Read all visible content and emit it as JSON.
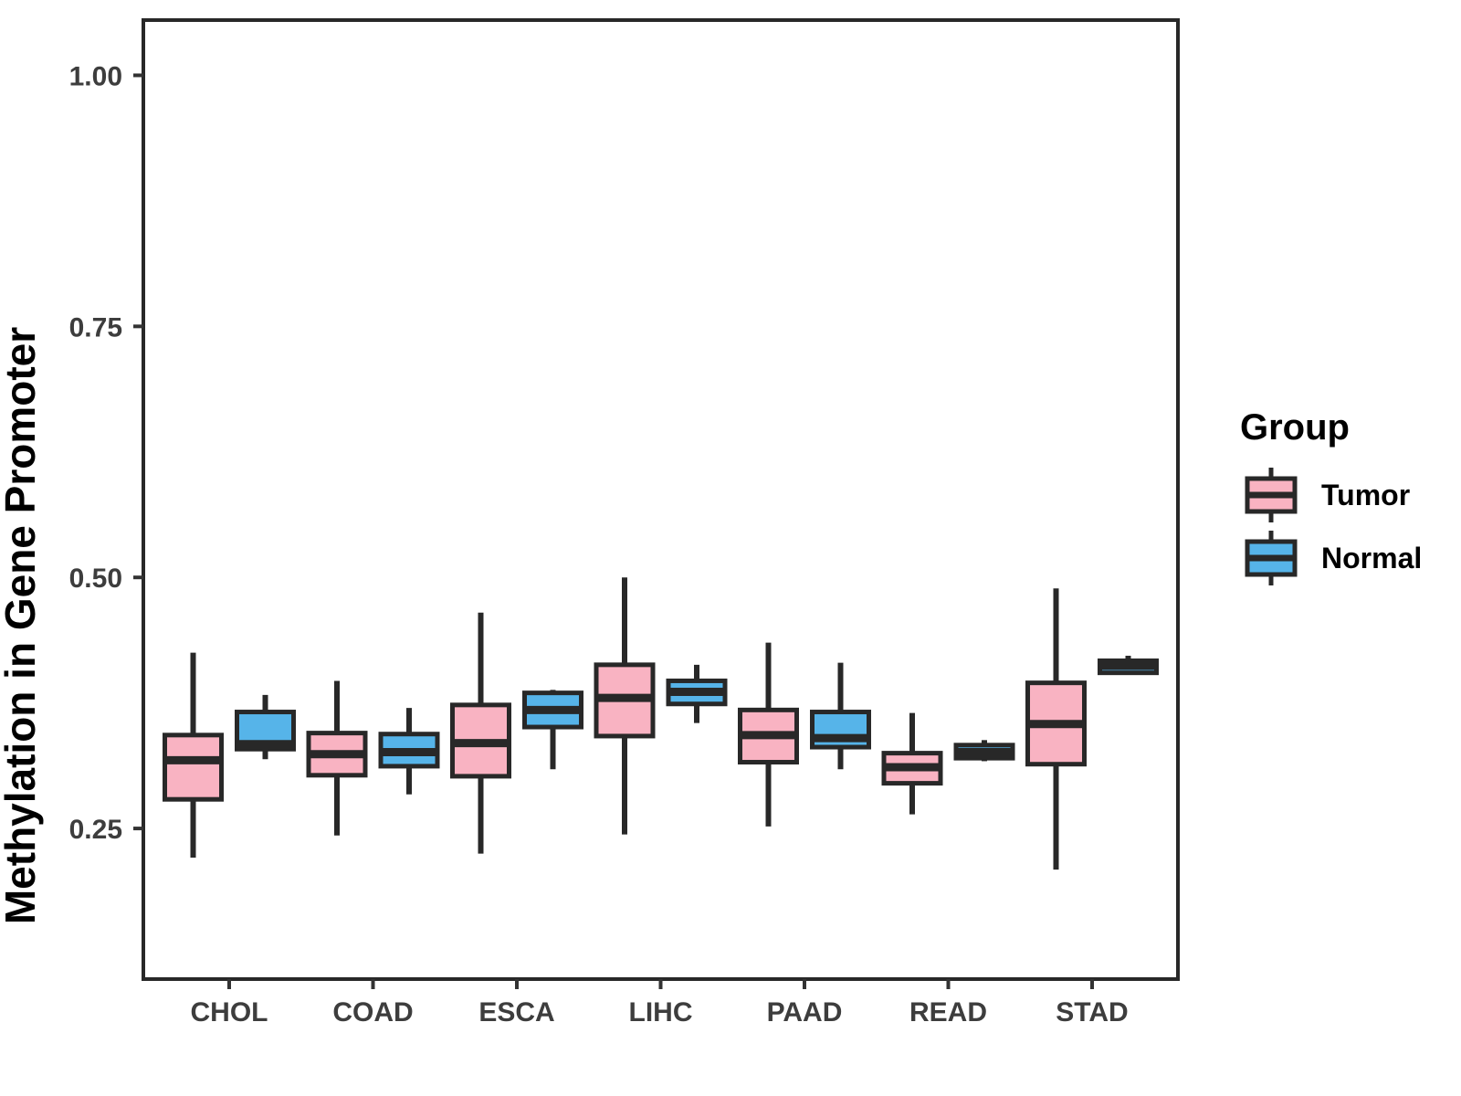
{
  "chart_data": {
    "type": "boxplot",
    "title": "",
    "xlabel": "",
    "ylabel": "Methylation in Gene Promoter",
    "categories": [
      "CHOL",
      "COAD",
      "ESCA",
      "LIHC",
      "PAAD",
      "READ",
      "STAD"
    ],
    "yticks": [
      {
        "value": 0.25,
        "label": "0.25"
      },
      {
        "value": 0.5,
        "label": "0.50"
      },
      {
        "value": 0.75,
        "label": "0.75"
      },
      {
        "value": 1.0,
        "label": "1.00"
      }
    ],
    "ylim": [
      0.1,
      1.055
    ],
    "grid": false,
    "panel_border": true,
    "legend_position": "right",
    "legend": {
      "title": "Group",
      "entries": [
        {
          "label": "Tumor",
          "color": "#F9B3C2"
        },
        {
          "label": "Normal",
          "color": "#56B4E9"
        }
      ]
    },
    "stroke_color": "#282828",
    "series": [
      {
        "name": "Tumor",
        "color": "#F9B3C2",
        "boxes": [
          {
            "category": "CHOL",
            "low": 0.221,
            "q1": 0.279,
            "median": 0.318,
            "q3": 0.343,
            "high": 0.425
          },
          {
            "category": "COAD",
            "low": 0.243,
            "q1": 0.303,
            "median": 0.324,
            "q3": 0.345,
            "high": 0.397
          },
          {
            "category": "ESCA",
            "low": 0.225,
            "q1": 0.302,
            "median": 0.335,
            "q3": 0.373,
            "high": 0.465
          },
          {
            "category": "LIHC",
            "low": 0.244,
            "q1": 0.342,
            "median": 0.38,
            "q3": 0.413,
            "high": 0.5
          },
          {
            "category": "PAAD",
            "low": 0.252,
            "q1": 0.316,
            "median": 0.343,
            "q3": 0.368,
            "high": 0.435
          },
          {
            "category": "READ",
            "low": 0.264,
            "q1": 0.295,
            "median": 0.311,
            "q3": 0.325,
            "high": 0.365
          },
          {
            "category": "STAD",
            "low": 0.209,
            "q1": 0.314,
            "median": 0.354,
            "q3": 0.395,
            "high": 0.489
          }
        ]
      },
      {
        "name": "Normal",
        "color": "#56B4E9",
        "boxes": [
          {
            "category": "CHOL",
            "low": 0.319,
            "q1": 0.329,
            "median": 0.334,
            "q3": 0.366,
            "high": 0.383
          },
          {
            "category": "COAD",
            "low": 0.284,
            "q1": 0.312,
            "median": 0.326,
            "q3": 0.344,
            "high": 0.37
          },
          {
            "category": "ESCA",
            "low": 0.309,
            "q1": 0.351,
            "median": 0.368,
            "q3": 0.385,
            "high": 0.388
          },
          {
            "category": "LIHC",
            "low": 0.355,
            "q1": 0.374,
            "median": 0.386,
            "q3": 0.397,
            "high": 0.413
          },
          {
            "category": "PAAD",
            "low": 0.309,
            "q1": 0.331,
            "median": 0.34,
            "q3": 0.366,
            "high": 0.415
          },
          {
            "category": "READ",
            "low": 0.317,
            "q1": 0.32,
            "median": 0.326,
            "q3": 0.333,
            "high": 0.338
          },
          {
            "category": "STAD",
            "low": 0.403,
            "q1": 0.405,
            "median": 0.412,
            "q3": 0.417,
            "high": 0.422
          }
        ]
      }
    ]
  }
}
